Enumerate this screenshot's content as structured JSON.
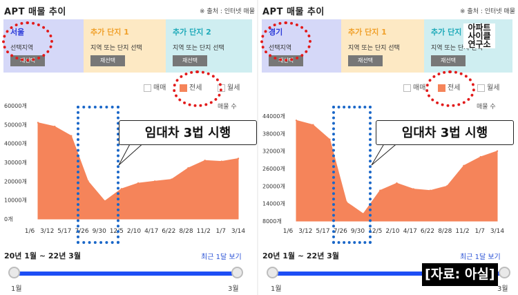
{
  "colors": {
    "accent": "#f5845a",
    "slider": "#1d4ef5",
    "period_link": "#2a52d6",
    "highlight_ring": "#e21b1b",
    "highlight_box": "#1a67c8"
  },
  "panels": [
    {
      "title": "APT 매물 추이",
      "source": "※ 출처 : 인터넷 매물",
      "selectors": [
        {
          "head": "서울",
          "sub": "선택지역",
          "button": "재선택",
          "bg": "#d5d8f8",
          "head_color": "#2a39d9"
        },
        {
          "head": "추가 단지 1",
          "sub": "지역 또는 단지 선택",
          "button": "재선택",
          "bg": "#fde9c4",
          "head_color": "#f0a02a"
        },
        {
          "head": "추가 단지 2",
          "sub": "지역 또는 단지 선택",
          "button": "재선택",
          "bg": "#cfeef1",
          "head_color": "#1eaab9"
        }
      ],
      "legend": [
        "매매",
        "전세",
        "월세"
      ],
      "unit_label": "매물 수",
      "period": "20년 1월 ~ 22년 3월",
      "recent_link": "최근 1달 보기",
      "slider_start": "1월",
      "slider_end": "3월"
    },
    {
      "title": "APT 매물 추이",
      "source": "※ 출처 : 인터넷 매물",
      "selectors": [
        {
          "head": "경기",
          "sub": "선택지역",
          "button": "재선택",
          "bg": "#d5d8f8",
          "head_color": "#2a39d9"
        },
        {
          "head": "추가 단지 1",
          "sub": "지역 또는 단지 선택",
          "button": "재선택",
          "bg": "#fde9c4",
          "head_color": "#f0a02a"
        },
        {
          "head": "추가 단지 2",
          "sub": "지역 또는 단지 선택",
          "button": "재선택",
          "bg": "#cfeef1",
          "head_color": "#1eaab9"
        }
      ],
      "legend": [
        "매매",
        "전세",
        "월세"
      ],
      "unit_label": "매물 수",
      "period": "20년 1월 ~ 22년 3월",
      "recent_link": "최근 1달 보기",
      "slider_start": "1월",
      "slider_end": "3월"
    }
  ],
  "callout": "임대차 3법 시행",
  "watermark": "아파트 사이클 연구소",
  "caption": "[자료: 아실]",
  "chart_data": [
    {
      "type": "area",
      "region": "서울",
      "series_name": "전세",
      "ylabel": "매물 수",
      "yticks": [
        "0개",
        "10000개",
        "20000개",
        "30000개",
        "40000개",
        "50000개",
        "60000개"
      ],
      "ylim": [
        0,
        60000
      ],
      "xticks": [
        "1/6",
        "3/12",
        "5/17",
        "7/26",
        "9/30",
        "12/5",
        "2/10",
        "4/17",
        "6/22",
        "8/28",
        "11/2",
        "1/7",
        "3/14"
      ],
      "x": [
        "1/6",
        "3/12",
        "5/17",
        "7/26",
        "9/30",
        "12/5",
        "2/10",
        "4/17",
        "6/22",
        "8/28",
        "11/2",
        "1/7",
        "3/14"
      ],
      "values": [
        51000,
        49000,
        44000,
        20000,
        9500,
        16000,
        19000,
        20000,
        21000,
        27000,
        31000,
        30500,
        32000
      ]
    },
    {
      "type": "area",
      "region": "경기",
      "series_name": "전세",
      "ylabel": "매물 수",
      "yticks": [
        "8000개",
        "14000개",
        "20000개",
        "26000개",
        "32000개",
        "38000개",
        "44000개"
      ],
      "ylim": [
        8000,
        44000
      ],
      "xticks": [
        "1/6",
        "3/12",
        "5/17",
        "7/26",
        "9/30",
        "12/5",
        "2/10",
        "4/17",
        "6/22",
        "8/28",
        "11/2",
        "1/7",
        "3/14"
      ],
      "x": [
        "1/6",
        "3/12",
        "5/17",
        "7/26",
        "9/30",
        "12/5",
        "2/10",
        "4/17",
        "6/22",
        "8/28",
        "11/2",
        "1/7",
        "3/14"
      ],
      "values": [
        42500,
        41000,
        36000,
        14500,
        10500,
        18500,
        21000,
        19000,
        18500,
        20000,
        27000,
        30000,
        32000
      ]
    }
  ]
}
